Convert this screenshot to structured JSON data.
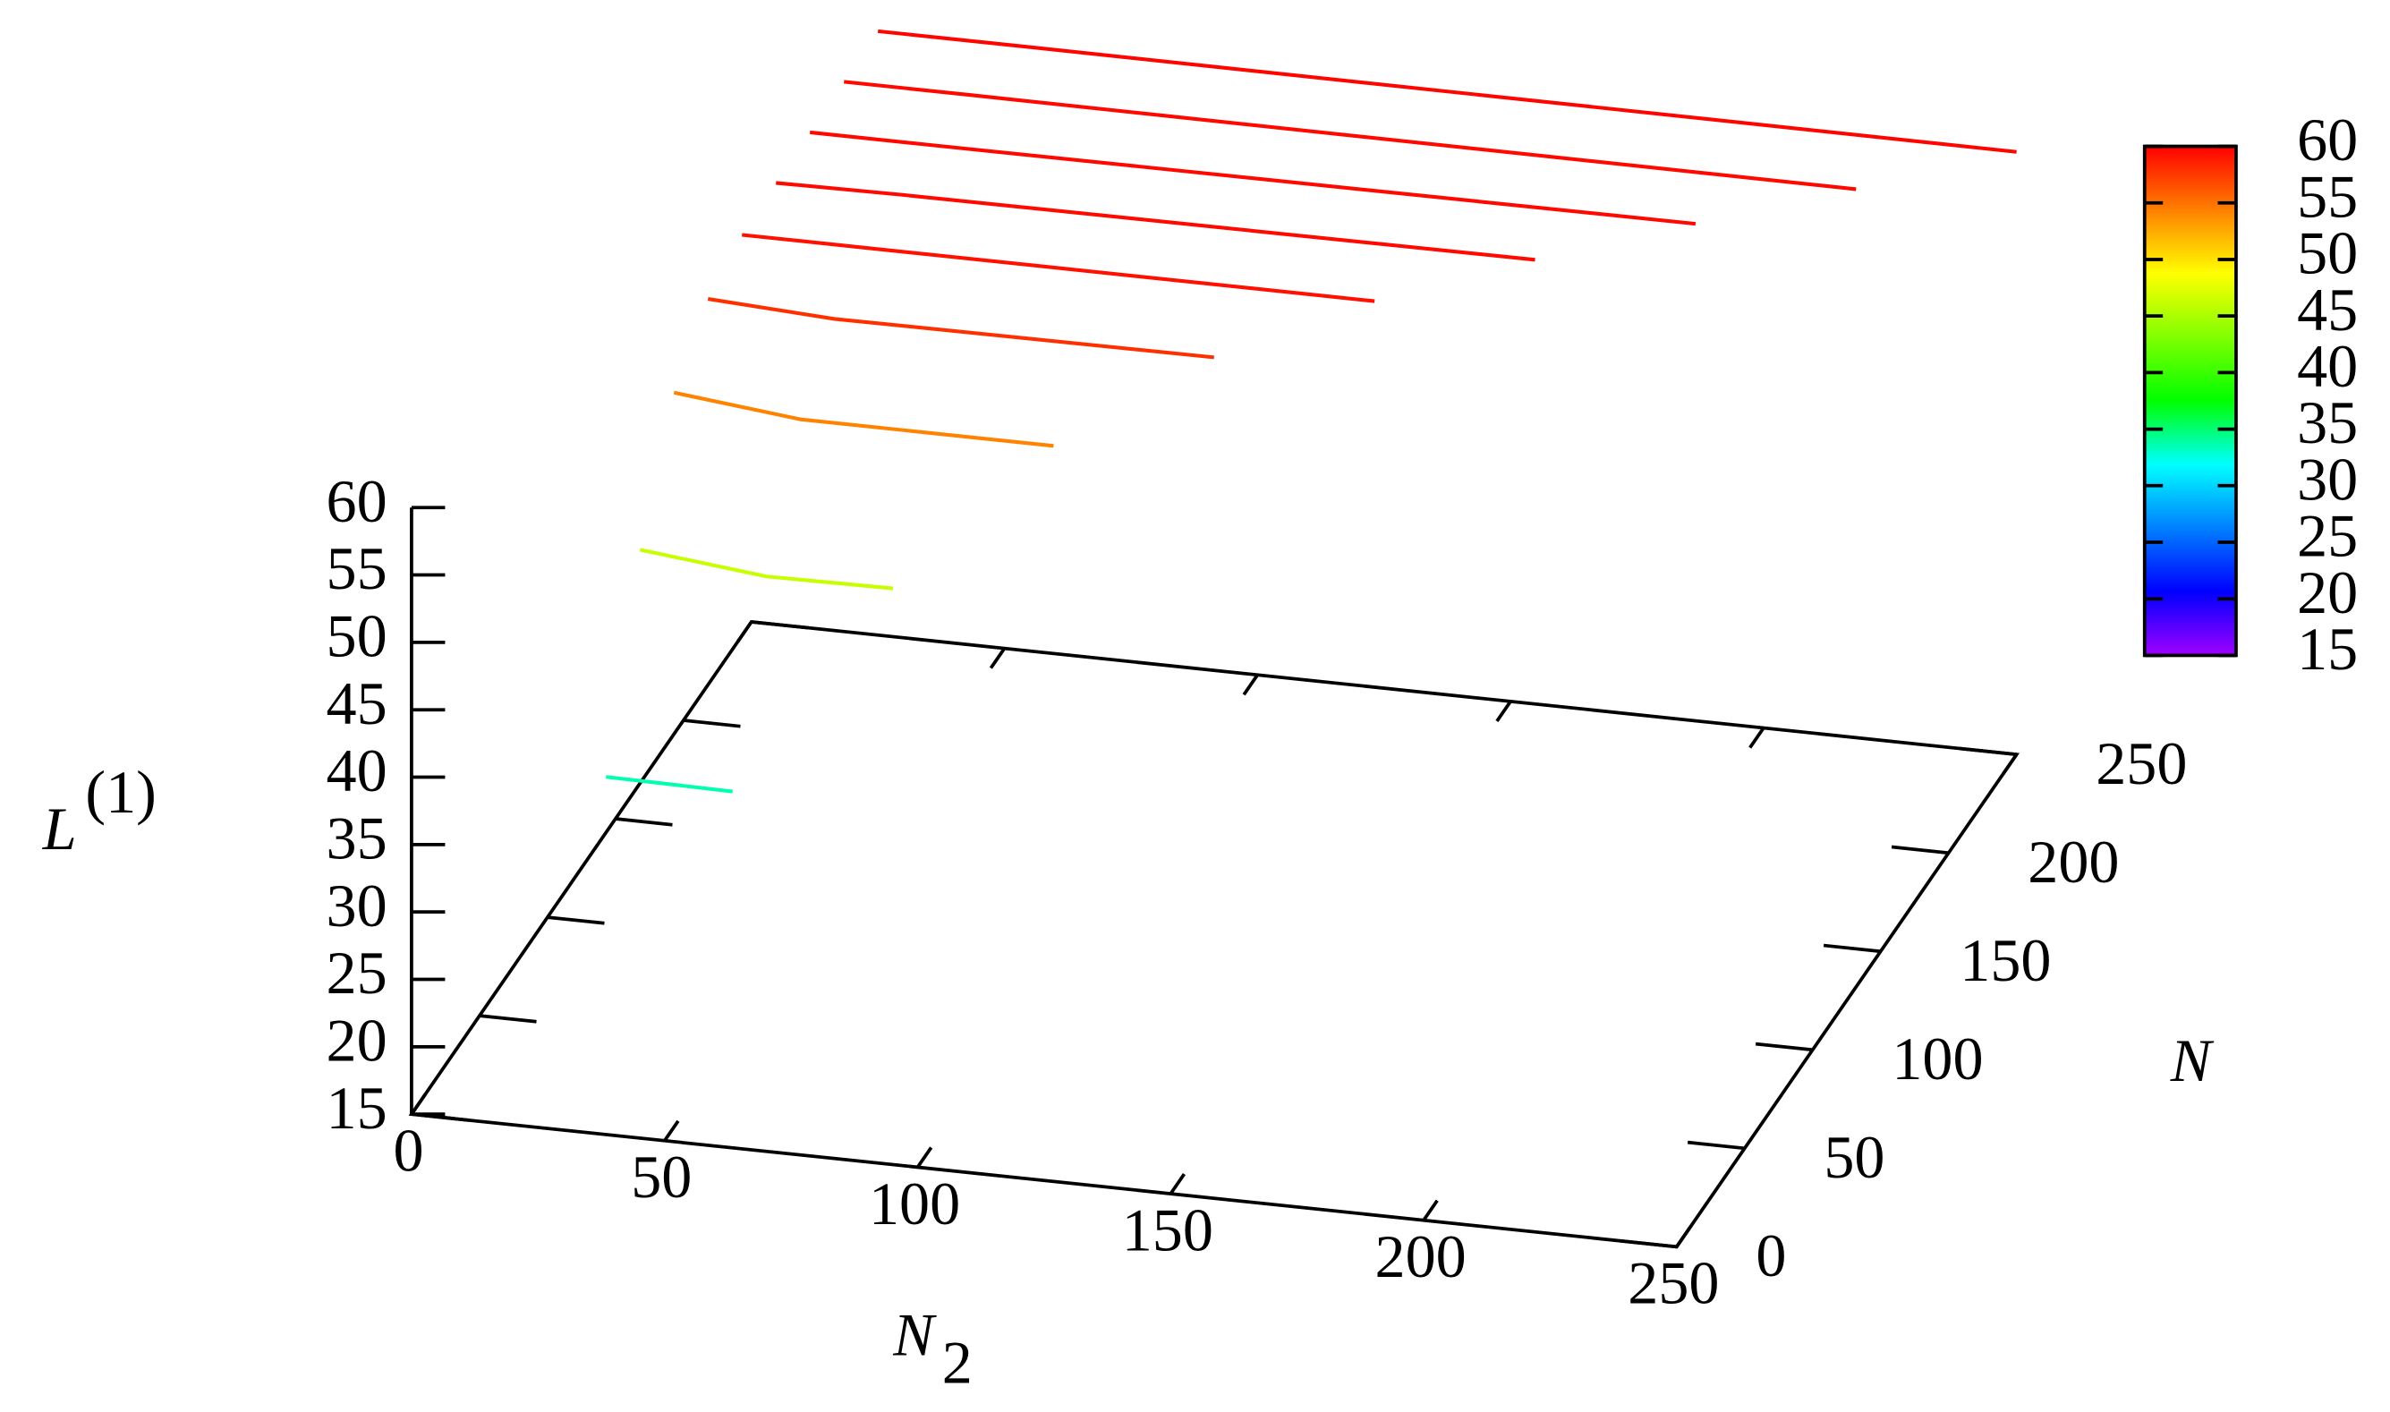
{
  "chart_data": {
    "type": "line3d",
    "x_label": {
      "text": "N",
      "sub": "2"
    },
    "y_label": "N",
    "z_label": {
      "text": "L",
      "sup": "(1)"
    },
    "xlim": [
      0,
      250
    ],
    "xticks": [
      0,
      50,
      100,
      150,
      200,
      250
    ],
    "ylim": [
      0,
      250
    ],
    "yticks": [
      0,
      50,
      100,
      150,
      200,
      250
    ],
    "zlim": [
      15,
      60
    ],
    "zticks": [
      15,
      20,
      25,
      30,
      35,
      40,
      45,
      50,
      55,
      60
    ],
    "colorbar": {
      "lim": [
        15,
        60
      ],
      "ticks": [
        15,
        20,
        25,
        30,
        35,
        40,
        45,
        50,
        55,
        60
      ],
      "palette": [
        "#a000ff",
        "#0000ff",
        "#0080ff",
        "#00ffff",
        "#00ff00",
        "#80ff00",
        "#ffff00",
        "#ff8000",
        "#ff0000"
      ]
    },
    "series": [
      {
        "y": 50,
        "x": [
          25,
          50
        ],
        "values": [
          33.7,
          33.6
        ]
      },
      {
        "y": 75,
        "x": [
          25,
          50,
          75
        ],
        "values": [
          46.9,
          45.9,
          46.0
        ]
      },
      {
        "y": 100,
        "x": [
          25,
          50,
          100
        ],
        "values": [
          54.9,
          53.9,
          53.9
        ]
      },
      {
        "y": 125,
        "x": [
          25,
          50,
          125
        ],
        "values": [
          58.2,
          57.7,
          57.8
        ]
      },
      {
        "y": 150,
        "x": [
          25,
          50,
          150
        ],
        "values": [
          59.3,
          59.3,
          59.3
        ]
      },
      {
        "y": 175,
        "x": [
          25,
          50,
          175
        ],
        "values": [
          59.5,
          59.6,
          59.7
        ]
      },
      {
        "y": 200,
        "x": [
          25,
          50,
          200
        ],
        "values": [
          59.6,
          59.6,
          59.7
        ]
      },
      {
        "y": 225,
        "x": [
          25,
          50,
          225
        ],
        "values": [
          59.7,
          59.7,
          59.6
        ]
      },
      {
        "y": 250,
        "x": [
          25,
          50,
          250
        ],
        "values": [
          59.8,
          59.8,
          59.7
        ]
      }
    ]
  }
}
